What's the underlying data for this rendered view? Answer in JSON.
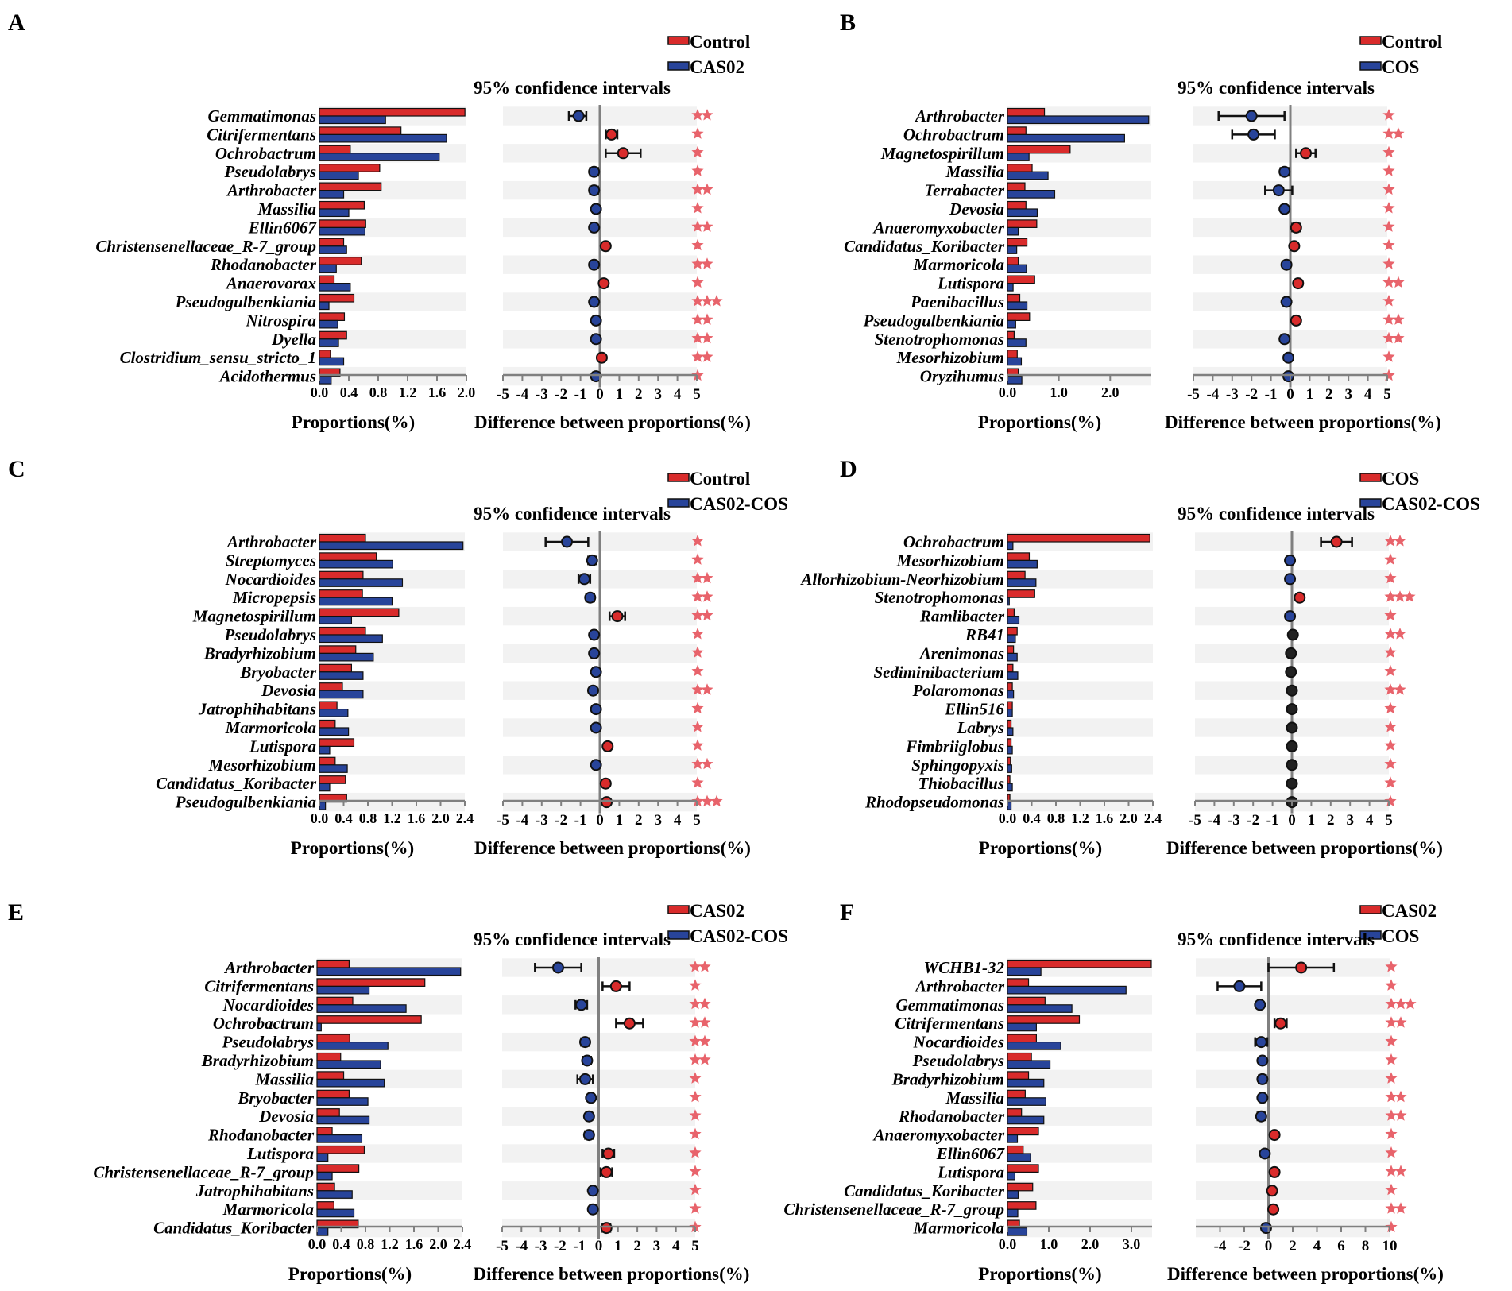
{
  "colors": {
    "series1": "#d92b2b",
    "series2": "#28449a",
    "star": "#e8636b",
    "stripe": "#f2f2f2",
    "axis": "#808080"
  },
  "labels": {
    "ci_title": "95% confidence intervals",
    "xlabel_left": "Proportions(%)",
    "xlabel_right": "Difference between proportions(%)"
  },
  "chart_data": [
    {
      "panel": "A",
      "type": "bar",
      "legend": [
        "Control",
        "CAS02"
      ],
      "categories": [
        "Gemmatimonas",
        "Citrifermentans",
        "Ochrobactrum",
        "Pseudolabrys",
        "Arthrobacter",
        "Massilia",
        "Ellin6067",
        "Christensenellaceae_R-7_group",
        "Rhodanobacter",
        "Anaerovorax",
        "Pseudogulbenkiania",
        "Nitrospira",
        "Dyella",
        "Clostridium_sensu_stricto_1",
        "Acidothermus"
      ],
      "series": [
        {
          "name": "Control",
          "values": [
            1.98,
            1.11,
            0.42,
            0.82,
            0.84,
            0.61,
            0.63,
            0.33,
            0.57,
            0.2,
            0.47,
            0.34,
            0.37,
            0.15,
            0.28
          ]
        },
        {
          "name": "CAS02",
          "values": [
            0.9,
            1.73,
            1.63,
            0.53,
            0.33,
            0.4,
            0.62,
            0.37,
            0.23,
            0.42,
            0.13,
            0.25,
            0.26,
            0.33,
            0.16
          ]
        }
      ],
      "xlim": [
        0,
        2.0
      ],
      "xticks": [
        "0.0",
        "0.4",
        "0.8",
        "1.2",
        "1.6",
        "2.0"
      ],
      "diff": {
        "values": [
          -1.1,
          0.6,
          1.2,
          -0.3,
          -0.3,
          -0.2,
          -0.3,
          0.3,
          -0.3,
          0.2,
          -0.3,
          -0.2,
          -0.2,
          0.1,
          -0.2
        ],
        "ci_low": [
          -1.6,
          0.3,
          0.3,
          -0.5,
          -0.5,
          -0.35,
          -0.45,
          0.15,
          -0.45,
          0.1,
          -0.45,
          -0.35,
          -0.35,
          0.0,
          -0.35
        ],
        "ci_high": [
          -0.7,
          0.9,
          2.1,
          -0.1,
          -0.1,
          -0.05,
          -0.15,
          0.45,
          -0.15,
          0.3,
          -0.15,
          -0.05,
          -0.05,
          0.2,
          -0.05
        ],
        "xlim": [
          -5,
          5
        ],
        "xticks": [
          "-5",
          "-4",
          "-3",
          "-2",
          "-1",
          "0",
          "1",
          "2",
          "3",
          "4",
          "5"
        ]
      },
      "stars": [
        2,
        1,
        1,
        1,
        2,
        1,
        2,
        1,
        2,
        1,
        3,
        2,
        2,
        2,
        1
      ]
    },
    {
      "panel": "B",
      "type": "bar",
      "legend": [
        "Control",
        "COS"
      ],
      "categories": [
        "Arthrobacter",
        "Ochrobactrum",
        "Magnetospirillum",
        "Massilia",
        "Terrabacter",
        "Devosia",
        "Anaeromyxobacter",
        "Candidatus_Koribacter",
        "Marmoricola",
        "Lutispora",
        "Paenibacillus",
        "Pseudogulbenkiania",
        "Stenotrophomonas",
        "Mesorhizobium",
        "Oryzihumus"
      ],
      "series": [
        {
          "name": "Control",
          "values": [
            0.72,
            0.36,
            1.22,
            0.48,
            0.34,
            0.36,
            0.57,
            0.38,
            0.21,
            0.53,
            0.24,
            0.43,
            0.13,
            0.19,
            0.21
          ]
        },
        {
          "name": "COS",
          "values": [
            2.75,
            2.28,
            0.42,
            0.79,
            0.92,
            0.58,
            0.21,
            0.18,
            0.37,
            0.11,
            0.38,
            0.16,
            0.36,
            0.27,
            0.28
          ]
        }
      ],
      "xlim": [
        0,
        2.8
      ],
      "xticks": [
        "0.0",
        "1.0",
        "2.0"
      ],
      "diff": {
        "values": [
          -2.0,
          -1.9,
          0.8,
          -0.3,
          -0.6,
          -0.3,
          0.3,
          0.2,
          -0.2,
          0.4,
          -0.2,
          0.3,
          -0.3,
          -0.1,
          -0.1
        ],
        "ci_low": [
          -3.7,
          -3.0,
          0.3,
          -0.5,
          -1.3,
          -0.45,
          0.1,
          0.1,
          -0.3,
          0.3,
          -0.3,
          0.2,
          -0.45,
          -0.2,
          -0.2
        ],
        "ci_high": [
          -0.3,
          -0.8,
          1.3,
          -0.1,
          0.1,
          -0.15,
          0.5,
          0.3,
          -0.1,
          0.5,
          -0.1,
          0.4,
          -0.15,
          0.0,
          0.0
        ],
        "xlim": [
          -5,
          5
        ],
        "xticks": [
          "-5",
          "-4",
          "-3",
          "-2",
          "-1",
          "0",
          "1",
          "2",
          "3",
          "4",
          "5"
        ]
      },
      "stars": [
        1,
        2,
        1,
        1,
        1,
        1,
        1,
        1,
        1,
        2,
        1,
        2,
        2,
        1,
        1
      ]
    },
    {
      "panel": "C",
      "type": "bar",
      "legend": [
        "Control",
        "CAS02-COS"
      ],
      "categories": [
        "Arthrobacter",
        "Streptomyces",
        "Nocardioides",
        "Micropepsis",
        "Magnetospirillum",
        "Pseudolabrys",
        "Bradyrhizobium",
        "Bryobacter",
        "Devosia",
        "Jatrophihabitans",
        "Marmoricola",
        "Lutispora",
        "Mesorhizobium",
        "Candidatus_Koribacter",
        "Pseudogulbenkiania"
      ],
      "series": [
        {
          "name": "Control",
          "values": [
            0.76,
            0.94,
            0.72,
            0.71,
            1.31,
            0.76,
            0.6,
            0.53,
            0.38,
            0.29,
            0.26,
            0.57,
            0.26,
            0.43,
            0.45
          ]
        },
        {
          "name": "CAS02-COS",
          "values": [
            2.37,
            1.21,
            1.37,
            1.2,
            0.53,
            1.04,
            0.89,
            0.72,
            0.72,
            0.47,
            0.48,
            0.17,
            0.46,
            0.17,
            0.1
          ]
        }
      ],
      "xlim": [
        0,
        2.4
      ],
      "xticks": [
        "0.0",
        "0.4",
        "0.8",
        "1.2",
        "1.6",
        "2.0",
        "2.4"
      ],
      "diff": {
        "values": [
          -1.7,
          -0.4,
          -0.8,
          -0.5,
          0.9,
          -0.3,
          -0.3,
          -0.2,
          -0.35,
          -0.2,
          -0.2,
          0.4,
          -0.2,
          0.3,
          0.35
        ],
        "ci_low": [
          -2.8,
          -0.6,
          -1.1,
          -0.7,
          0.5,
          -0.45,
          -0.45,
          -0.35,
          -0.5,
          -0.3,
          -0.3,
          0.25,
          -0.3,
          0.2,
          0.25
        ],
        "ci_high": [
          -0.6,
          -0.2,
          -0.5,
          -0.3,
          1.3,
          -0.15,
          -0.15,
          -0.05,
          -0.2,
          -0.1,
          -0.1,
          0.55,
          -0.1,
          0.4,
          0.45
        ],
        "xlim": [
          -5,
          5
        ],
        "xticks": [
          "-5",
          "-4",
          "-3",
          "-2",
          "-1",
          "0",
          "1",
          "2",
          "3",
          "4",
          "5"
        ]
      },
      "stars": [
        1,
        1,
        2,
        2,
        2,
        1,
        1,
        1,
        2,
        1,
        1,
        1,
        2,
        1,
        3
      ]
    },
    {
      "panel": "D",
      "type": "bar",
      "legend": [
        "COS",
        "CAS02-COS"
      ],
      "categories": [
        "Ochrobactrum",
        "Mesorhizobium",
        "Allorhizobium-Neorhizobium",
        "Stenotrophomonas",
        "Ramlibacter",
        "RB41",
        "Arenimonas",
        "Sediminibacterium",
        "Polaromonas",
        "Ellin516",
        "Labrys",
        "Fimbriiglobus",
        "Sphingopyxis",
        "Thiobacillus",
        "Rhodopseudomonas"
      ],
      "series": [
        {
          "name": "COS",
          "values": [
            2.35,
            0.36,
            0.29,
            0.45,
            0.11,
            0.16,
            0.1,
            0.09,
            0.08,
            0.08,
            0.06,
            0.06,
            0.05,
            0.04,
            0.04
          ]
        },
        {
          "name": "CAS02-COS",
          "values": [
            0.09,
            0.49,
            0.47,
            0.03,
            0.19,
            0.13,
            0.16,
            0.17,
            0.1,
            0.08,
            0.09,
            0.08,
            0.07,
            0.08,
            0.06
          ]
        }
      ],
      "xlim": [
        0,
        2.4
      ],
      "xticks": [
        "0.0",
        "0.4",
        "0.8",
        "1.2",
        "1.6",
        "2.0",
        "2.4"
      ],
      "diff": {
        "values": [
          2.3,
          -0.1,
          -0.1,
          0.4,
          -0.1,
          0.05,
          -0.05,
          -0.05,
          0.0,
          0.0,
          0.0,
          0.0,
          0.0,
          0.0,
          0.0
        ],
        "ci_low": [
          1.5,
          -0.2,
          -0.2,
          0.3,
          -0.15,
          0.0,
          -0.1,
          -0.1,
          -0.05,
          -0.05,
          -0.05,
          -0.05,
          -0.05,
          -0.05,
          -0.05
        ],
        "ci_high": [
          3.1,
          0.0,
          0.0,
          0.5,
          -0.05,
          0.1,
          0.0,
          0.0,
          0.05,
          0.05,
          0.05,
          0.05,
          0.05,
          0.05,
          0.05
        ],
        "xlim": [
          -5,
          5
        ],
        "xticks": [
          "-5",
          "-4",
          "-3",
          "-2",
          "-1",
          "0",
          "1",
          "2",
          "3",
          "4",
          "5"
        ]
      },
      "stars": [
        2,
        1,
        1,
        3,
        1,
        2,
        1,
        1,
        2,
        1,
        1,
        1,
        1,
        1,
        1
      ]
    },
    {
      "panel": "E",
      "type": "bar",
      "legend": [
        "CAS02",
        "CAS02-COS"
      ],
      "categories": [
        "Arthrobacter",
        "Citrifermentans",
        "Nocardioides",
        "Ochrobactrum",
        "Pseudolabrys",
        "Bradyrhizobium",
        "Massilia",
        "Bryobacter",
        "Devosia",
        "Rhodanobacter",
        "Lutispora",
        "Christensenellaceae_R-7_group",
        "Jatrophihabitans",
        "Marmoricola",
        "Candidatus_Koribacter"
      ],
      "series": [
        {
          "name": "CAS02",
          "values": [
            0.53,
            1.78,
            0.59,
            1.72,
            0.54,
            0.39,
            0.44,
            0.53,
            0.37,
            0.25,
            0.78,
            0.69,
            0.29,
            0.28,
            0.68
          ]
        },
        {
          "name": "CAS02-COS",
          "values": [
            2.37,
            0.86,
            1.47,
            0.07,
            1.17,
            1.05,
            1.11,
            0.84,
            0.86,
            0.74,
            0.18,
            0.25,
            0.58,
            0.61,
            0.18
          ]
        }
      ],
      "xlim": [
        0,
        2.4
      ],
      "xticks": [
        "0.0",
        "0.4",
        "0.8",
        "1.2",
        "1.6",
        "2.0",
        "2.4"
      ],
      "diff": {
        "values": [
          -2.1,
          0.9,
          -0.9,
          1.6,
          -0.7,
          -0.6,
          -0.7,
          -0.4,
          -0.5,
          -0.5,
          0.5,
          0.4,
          -0.3,
          -0.3,
          0.4
        ],
        "ci_low": [
          -3.3,
          0.2,
          -1.2,
          0.9,
          -0.9,
          -0.8,
          -1.1,
          -0.55,
          -0.65,
          -0.7,
          0.2,
          0.1,
          -0.4,
          -0.45,
          0.2
        ],
        "ci_high": [
          -0.9,
          1.6,
          -0.6,
          2.3,
          -0.5,
          -0.4,
          -0.3,
          -0.25,
          -0.35,
          -0.3,
          0.8,
          0.7,
          -0.2,
          -0.15,
          0.6
        ],
        "xlim": [
          -5,
          5
        ],
        "xticks": [
          "-5",
          "-4",
          "-3",
          "-2",
          "-1",
          "0",
          "1",
          "2",
          "3",
          "4",
          "5"
        ]
      },
      "stars": [
        2,
        1,
        2,
        2,
        2,
        2,
        1,
        1,
        1,
        1,
        1,
        1,
        1,
        1,
        1
      ]
    },
    {
      "panel": "F",
      "type": "bar",
      "legend": [
        "CAS02",
        "COS"
      ],
      "categories": [
        "WCHB1-32",
        "Arthrobacter",
        "Gemmatimonas",
        "Citrifermentans",
        "Nocardioides",
        "Pseudolabrys",
        "Bradyrhizobium",
        "Massilia",
        "Rhodanobacter",
        "Anaeromyxobacter",
        "Ellin6067",
        "Lutispora",
        "Candidatus_Koribacter",
        "Christensenellaceae_R-7_group",
        "Marmoricola"
      ],
      "series": [
        {
          "name": "CAS02",
          "values": [
            3.48,
            0.51,
            0.91,
            1.74,
            0.7,
            0.58,
            0.51,
            0.43,
            0.34,
            0.75,
            0.38,
            0.75,
            0.61,
            0.69,
            0.29
          ]
        },
        {
          "name": "COS",
          "values": [
            0.81,
            2.87,
            1.56,
            0.7,
            1.29,
            1.03,
            0.88,
            0.93,
            0.88,
            0.24,
            0.56,
            0.18,
            0.26,
            0.25,
            0.47
          ]
        }
      ],
      "xlim": [
        0,
        3.5
      ],
      "xticks": [
        "0.0",
        "1.0",
        "2.0",
        "3.0"
      ],
      "diff": {
        "values": [
          2.7,
          -2.4,
          -0.7,
          1.0,
          -0.6,
          -0.5,
          -0.5,
          -0.5,
          -0.6,
          0.5,
          -0.3,
          0.5,
          0.3,
          0.4,
          -0.2
        ],
        "ci_low": [
          0.0,
          -4.2,
          -0.9,
          0.5,
          -1.1,
          -0.7,
          -0.8,
          -0.7,
          -0.9,
          0.3,
          -0.45,
          0.3,
          0.2,
          0.25,
          -0.35
        ],
        "ci_high": [
          5.4,
          -0.6,
          -0.5,
          1.5,
          -0.1,
          -0.3,
          -0.2,
          -0.3,
          -0.3,
          0.7,
          -0.15,
          0.7,
          0.4,
          0.55,
          -0.05
        ],
        "xlim": [
          -6,
          10
        ],
        "xticks": [
          "-4",
          "-2",
          "0",
          "2",
          "4",
          "6",
          "8",
          "10"
        ]
      },
      "stars": [
        1,
        1,
        3,
        2,
        1,
        1,
        1,
        2,
        2,
        1,
        1,
        2,
        1,
        2,
        1
      ]
    }
  ]
}
